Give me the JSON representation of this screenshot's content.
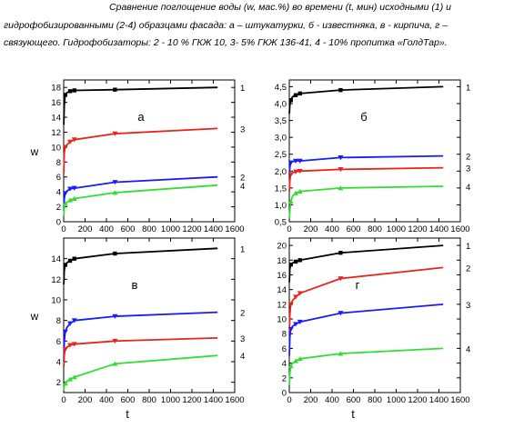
{
  "caption": {
    "line1": "Сравнение поглощение воды (w, мас.%) во времени (t, мин) исходными (1) и",
    "line2": "гидрофобизированными (2-4) образцами фасада: а – штукатурки, б - известняка, в - кирпича, г –",
    "line3": "связующего. Гидрофобизаторы: 2 - 10 % ГКЖ 10, 3- 5% ГКЖ 136-41, 4 - 10% пропитка «ГолдТар»."
  },
  "colors": {
    "s1": "#000000",
    "s2": "#1a1aff",
    "s3": "#e8241c",
    "s4": "#33dd33"
  },
  "chart_data": [
    {
      "type": "line",
      "panel_label": "а",
      "xlabel": "",
      "ylabel": "w",
      "xlim": [
        0,
        1600
      ],
      "ylim": [
        0,
        19
      ],
      "yticks": [
        0,
        2,
        4,
        6,
        8,
        10,
        12,
        14,
        16,
        18
      ],
      "xticks": [
        0,
        200,
        400,
        600,
        800,
        1000,
        1200,
        1400,
        1600
      ],
      "series": [
        {
          "name": "1",
          "color": "#000000",
          "x": [
            1,
            5,
            10,
            15,
            30,
            60,
            100,
            480,
            1440
          ],
          "y": [
            13.0,
            15.5,
            16.5,
            17.0,
            17.3,
            17.5,
            17.6,
            17.7,
            18.0
          ]
        },
        {
          "name": "3",
          "color": "#e8241c",
          "x": [
            1,
            5,
            10,
            15,
            30,
            60,
            100,
            480,
            1440
          ],
          "y": [
            6.5,
            9.0,
            9.8,
            10.0,
            10.3,
            10.7,
            11.0,
            11.8,
            12.5
          ]
        },
        {
          "name": "2",
          "color": "#1a1aff",
          "x": [
            1,
            5,
            10,
            15,
            30,
            60,
            100,
            480,
            1440
          ],
          "y": [
            1.5,
            3.0,
            3.5,
            3.8,
            4.1,
            4.4,
            4.5,
            5.3,
            6.0
          ]
        },
        {
          "name": "4",
          "color": "#33dd33",
          "x": [
            1,
            5,
            10,
            15,
            30,
            60,
            100,
            480,
            1440
          ],
          "y": [
            0.7,
            1.8,
            2.2,
            2.4,
            2.6,
            2.9,
            3.1,
            3.9,
            4.9
          ]
        }
      ]
    },
    {
      "type": "line",
      "panel_label": "б",
      "xlabel": "",
      "ylabel": "",
      "xlim": [
        0,
        1600
      ],
      "ylim": [
        0.5,
        4.7
      ],
      "yticks": [
        0.5,
        1.0,
        1.5,
        2.0,
        2.5,
        3.0,
        3.5,
        4.0,
        4.5
      ],
      "xticks": [
        0,
        200,
        400,
        600,
        800,
        1000,
        1200,
        1400,
        1600
      ],
      "series": [
        {
          "name": "1",
          "color": "#000000",
          "x": [
            1,
            5,
            10,
            15,
            30,
            60,
            100,
            480,
            1440
          ],
          "y": [
            3.7,
            3.95,
            4.05,
            4.1,
            4.2,
            4.25,
            4.3,
            4.4,
            4.5
          ]
        },
        {
          "name": "2",
          "color": "#1a1aff",
          "x": [
            1,
            5,
            10,
            15,
            30,
            60,
            100,
            480,
            1440
          ],
          "y": [
            1.9,
            2.1,
            2.2,
            2.25,
            2.28,
            2.3,
            2.3,
            2.4,
            2.45
          ]
        },
        {
          "name": "3",
          "color": "#e8241c",
          "x": [
            1,
            5,
            10,
            15,
            30,
            60,
            100,
            480,
            1440
          ],
          "y": [
            1.4,
            1.7,
            1.85,
            1.9,
            1.95,
            1.98,
            2.0,
            2.05,
            2.1
          ]
        },
        {
          "name": "4",
          "color": "#33dd33",
          "x": [
            1,
            5,
            10,
            15,
            30,
            60,
            100,
            480,
            1440
          ],
          "y": [
            0.6,
            0.8,
            1.0,
            1.1,
            1.25,
            1.35,
            1.4,
            1.5,
            1.55
          ]
        }
      ]
    },
    {
      "type": "line",
      "panel_label": "в",
      "xlabel": "t",
      "ylabel": "w",
      "xlim": [
        0,
        1600
      ],
      "ylim": [
        1,
        16
      ],
      "yticks": [
        2,
        4,
        6,
        8,
        10,
        12,
        14
      ],
      "xticks": [
        0,
        200,
        400,
        600,
        800,
        1000,
        1200,
        1400,
        1600
      ],
      "series": [
        {
          "name": "1",
          "color": "#000000",
          "x": [
            1,
            5,
            10,
            15,
            30,
            60,
            100,
            480,
            1440
          ],
          "y": [
            11.5,
            12.8,
            13.2,
            13.4,
            13.6,
            13.8,
            14.0,
            14.5,
            15.0
          ]
        },
        {
          "name": "2",
          "color": "#1a1aff",
          "x": [
            1,
            5,
            10,
            15,
            30,
            60,
            100,
            480,
            1440
          ],
          "y": [
            4.0,
            5.8,
            6.5,
            6.9,
            7.3,
            7.7,
            8.0,
            8.4,
            8.8
          ]
        },
        {
          "name": "3",
          "color": "#e8241c",
          "x": [
            1,
            5,
            10,
            15,
            30,
            60,
            100,
            480,
            1440
          ],
          "y": [
            3.5,
            4.6,
            5.0,
            5.2,
            5.4,
            5.6,
            5.7,
            6.0,
            6.3
          ]
        },
        {
          "name": "4",
          "color": "#33dd33",
          "x": [
            1,
            5,
            10,
            15,
            30,
            60,
            100,
            480,
            1440
          ],
          "y": [
            1.2,
            1.6,
            1.8,
            1.9,
            2.1,
            2.3,
            2.5,
            3.8,
            4.6
          ]
        }
      ]
    },
    {
      "type": "line",
      "panel_label": "г",
      "xlabel": "t",
      "ylabel": "",
      "xlim": [
        0,
        1600
      ],
      "ylim": [
        0,
        21
      ],
      "yticks": [
        0,
        2,
        4,
        6,
        8,
        10,
        12,
        14,
        16,
        18,
        20
      ],
      "xticks": [
        0,
        200,
        400,
        600,
        800,
        1000,
        1200,
        1400,
        1600
      ],
      "series": [
        {
          "name": "1",
          "color": "#000000",
          "x": [
            1,
            5,
            10,
            15,
            30,
            60,
            100,
            480,
            1440
          ],
          "y": [
            15.0,
            16.8,
            17.2,
            17.4,
            17.6,
            17.8,
            18.0,
            19.0,
            20.0
          ]
        },
        {
          "name": "2",
          "color": "#e8241c",
          "x": [
            1,
            5,
            10,
            15,
            30,
            60,
            100,
            480,
            1440
          ],
          "y": [
            8.0,
            10.5,
            11.5,
            12.0,
            12.5,
            13.0,
            13.5,
            15.5,
            17.0
          ]
        },
        {
          "name": "3",
          "color": "#1a1aff",
          "x": [
            1,
            5,
            10,
            15,
            30,
            60,
            100,
            480,
            1440
          ],
          "y": [
            5.0,
            7.5,
            8.3,
            8.6,
            9.0,
            9.3,
            9.6,
            10.8,
            12.0
          ]
        },
        {
          "name": "4",
          "color": "#33dd33",
          "x": [
            1,
            5,
            10,
            15,
            30,
            60,
            100,
            480,
            1440
          ],
          "y": [
            1.0,
            2.5,
            3.2,
            3.6,
            4.0,
            4.3,
            4.6,
            5.3,
            6.0
          ]
        }
      ]
    }
  ]
}
